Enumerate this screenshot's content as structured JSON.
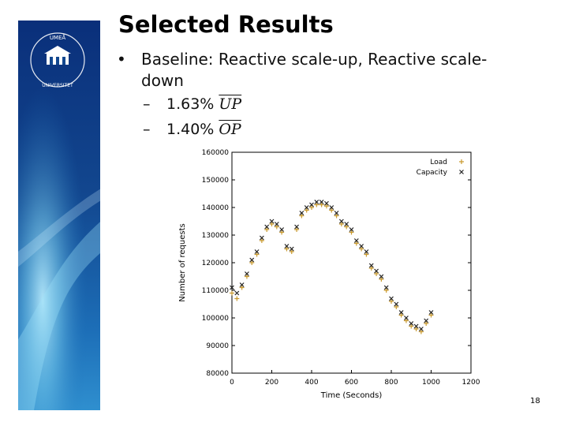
{
  "slide": {
    "title": "Selected Results",
    "bullets": [
      {
        "text": "Baseline: Reactive scale-up, Reactive scale-down",
        "line1": "Baseline: Reactive scale-up, Reactive scale-",
        "line2": "down",
        "subs": [
          {
            "value": "1.63%",
            "metric": "UP"
          },
          {
            "value": "1.40%",
            "metric": "OP"
          }
        ]
      }
    ],
    "slide_number": "18"
  },
  "logo": {
    "university_text": "UMEÅ UNIVERSITET",
    "colors": {
      "dark": "#0a2f7a",
      "mid": "#1d6fb8",
      "light": "#7fd2f0"
    }
  },
  "chart_data": {
    "type": "scatter",
    "title": "",
    "xlabel": "Time (Seconds)",
    "ylabel": "Number of requests",
    "xlim": [
      0,
      1200
    ],
    "ylim": [
      80000,
      160000
    ],
    "xticks": [
      0,
      200,
      400,
      600,
      800,
      1000,
      1200
    ],
    "xtick_labels": [
      "0",
      "200",
      "400",
      "600",
      "800",
      "1000",
      "1200"
    ],
    "yticks": [
      80000,
      90000,
      100000,
      110000,
      120000,
      130000,
      140000,
      150000,
      160000
    ],
    "ytick_labels": [
      "80000",
      "90000",
      "100000",
      "110000",
      "120000",
      "130000",
      "140000",
      "150000",
      "160000"
    ],
    "legend_position": "top-right",
    "series": [
      {
        "name": "Load",
        "marker": "+",
        "color": "#c99a2e",
        "x": [
          0,
          25,
          50,
          75,
          100,
          125,
          150,
          175,
          200,
          225,
          250,
          275,
          300,
          325,
          350,
          375,
          400,
          425,
          450,
          475,
          500,
          525,
          550,
          575,
          600,
          625,
          650,
          675,
          700,
          725,
          750,
          775,
          800,
          825,
          850,
          875,
          900,
          925,
          950,
          975,
          1000
        ],
        "values": [
          109000,
          107000,
          111000,
          115000,
          120000,
          123000,
          128000,
          132000,
          134000,
          133000,
          131000,
          125000,
          124000,
          132000,
          137000,
          139000,
          140000,
          141000,
          141000,
          140500,
          139000,
          137000,
          134000,
          133000,
          131000,
          127000,
          125000,
          123000,
          118000,
          116000,
          114000,
          110000,
          106000,
          104000,
          101000,
          99000,
          97000,
          96000,
          95000,
          98000,
          101000
        ]
      },
      {
        "name": "Capacity",
        "marker": "x",
        "color": "#222222",
        "x": [
          0,
          25,
          50,
          75,
          100,
          125,
          150,
          175,
          200,
          225,
          250,
          275,
          300,
          325,
          350,
          375,
          400,
          425,
          450,
          475,
          500,
          525,
          550,
          575,
          600,
          625,
          650,
          675,
          700,
          725,
          750,
          775,
          800,
          825,
          850,
          875,
          900,
          925,
          950,
          975,
          1000
        ],
        "values": [
          111000,
          109000,
          112000,
          116000,
          121000,
          124000,
          129000,
          133000,
          135000,
          134000,
          132000,
          126000,
          125000,
          133000,
          138000,
          140000,
          141000,
          142000,
          142000,
          141500,
          140000,
          138000,
          135000,
          134000,
          132000,
          128000,
          126000,
          124000,
          119000,
          117000,
          115000,
          111000,
          107000,
          105000,
          102000,
          100000,
          98000,
          97000,
          96000,
          99000,
          102000
        ]
      }
    ]
  }
}
